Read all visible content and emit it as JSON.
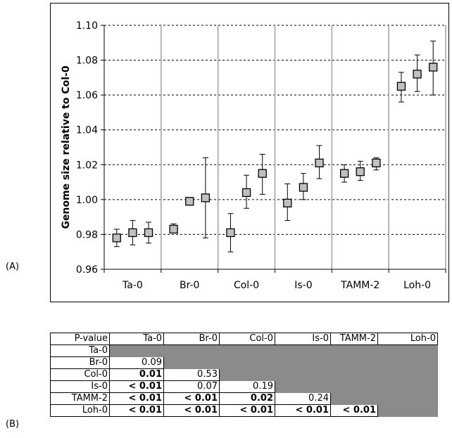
{
  "panel_labels": {
    "a": "(A)",
    "b": "(B)"
  },
  "chart_data": [
    {
      "type": "scatter",
      "title": "",
      "xlabel": "",
      "ylabel": "Genome size relative to Col-0",
      "ylim": [
        0.96,
        1.1
      ],
      "yticks": [
        "0.96",
        "0.98",
        "1.00",
        "1.02",
        "1.04",
        "1.06",
        "1.08",
        "1.10"
      ],
      "grid": "horizontal dashed, vertical solid separators",
      "categories": [
        "Ta-0",
        "Br-0",
        "Col-0",
        "Is-0",
        "TAMM-2",
        "Loh-0"
      ],
      "marker_color": "#c0c0c0",
      "points": [
        {
          "category": "Ta-0",
          "y": 0.978,
          "low": 0.973,
          "high": 0.983
        },
        {
          "category": "Ta-0",
          "y": 0.981,
          "low": 0.974,
          "high": 0.988
        },
        {
          "category": "Ta-0",
          "y": 0.981,
          "low": 0.975,
          "high": 0.987
        },
        {
          "category": "Br-0",
          "y": 0.983,
          "low": 0.981,
          "high": 0.986
        },
        {
          "category": "Br-0",
          "y": 0.999,
          "low": 0.999,
          "high": 0.999
        },
        {
          "category": "Br-0",
          "y": 1.001,
          "low": 0.978,
          "high": 1.024
        },
        {
          "category": "Col-0",
          "y": 0.981,
          "low": 0.97,
          "high": 0.992
        },
        {
          "category": "Col-0",
          "y": 1.004,
          "low": 0.995,
          "high": 1.014
        },
        {
          "category": "Col-0",
          "y": 1.015,
          "low": 1.003,
          "high": 1.026
        },
        {
          "category": "Is-0",
          "y": 0.998,
          "low": 0.988,
          "high": 1.009
        },
        {
          "category": "Is-0",
          "y": 1.007,
          "low": 1.0,
          "high": 1.015
        },
        {
          "category": "Is-0",
          "y": 1.021,
          "low": 1.012,
          "high": 1.031
        },
        {
          "category": "TAMM-2",
          "y": 1.015,
          "low": 1.01,
          "high": 1.02
        },
        {
          "category": "TAMM-2",
          "y": 1.016,
          "low": 1.011,
          "high": 1.022
        },
        {
          "category": "TAMM-2",
          "y": 1.021,
          "low": 1.017,
          "high": 1.024
        },
        {
          "category": "Loh-0",
          "y": 1.065,
          "low": 1.056,
          "high": 1.073
        },
        {
          "category": "Loh-0",
          "y": 1.072,
          "low": 1.062,
          "high": 1.083
        },
        {
          "category": "Loh-0",
          "y": 1.076,
          "low": 1.06,
          "high": 1.091
        }
      ]
    },
    {
      "type": "table",
      "header": [
        "P-value",
        "Ta-0",
        "Br-0",
        "Col-0",
        "Is-0",
        "TAMM-2",
        "Loh-0"
      ],
      "rows": [
        {
          "label": "Ta-0",
          "cells": []
        },
        {
          "label": "Br-0",
          "cells": [
            {
              "v": "0.09",
              "bold": false
            }
          ]
        },
        {
          "label": "Col-0",
          "cells": [
            {
              "v": "0.01",
              "bold": true
            },
            {
              "v": "0.53",
              "bold": false
            }
          ]
        },
        {
          "label": "Is-0",
          "cells": [
            {
              "v": "< 0.01",
              "bold": true
            },
            {
              "v": "0.07",
              "bold": false
            },
            {
              "v": "0.19",
              "bold": false
            }
          ]
        },
        {
          "label": "TAMM-2",
          "cells": [
            {
              "v": "< 0.01",
              "bold": true
            },
            {
              "v": "< 0.01",
              "bold": true
            },
            {
              "v": "0.02",
              "bold": true
            },
            {
              "v": "0.24",
              "bold": false
            }
          ]
        },
        {
          "label": "Loh-0",
          "cells": [
            {
              "v": "< 0.01",
              "bold": true
            },
            {
              "v": "< 0.01",
              "bold": true
            },
            {
              "v": "< 0.01",
              "bold": true
            },
            {
              "v": "< 0.01",
              "bold": true
            },
            {
              "v": "< 0.01",
              "bold": true
            }
          ]
        }
      ]
    }
  ]
}
